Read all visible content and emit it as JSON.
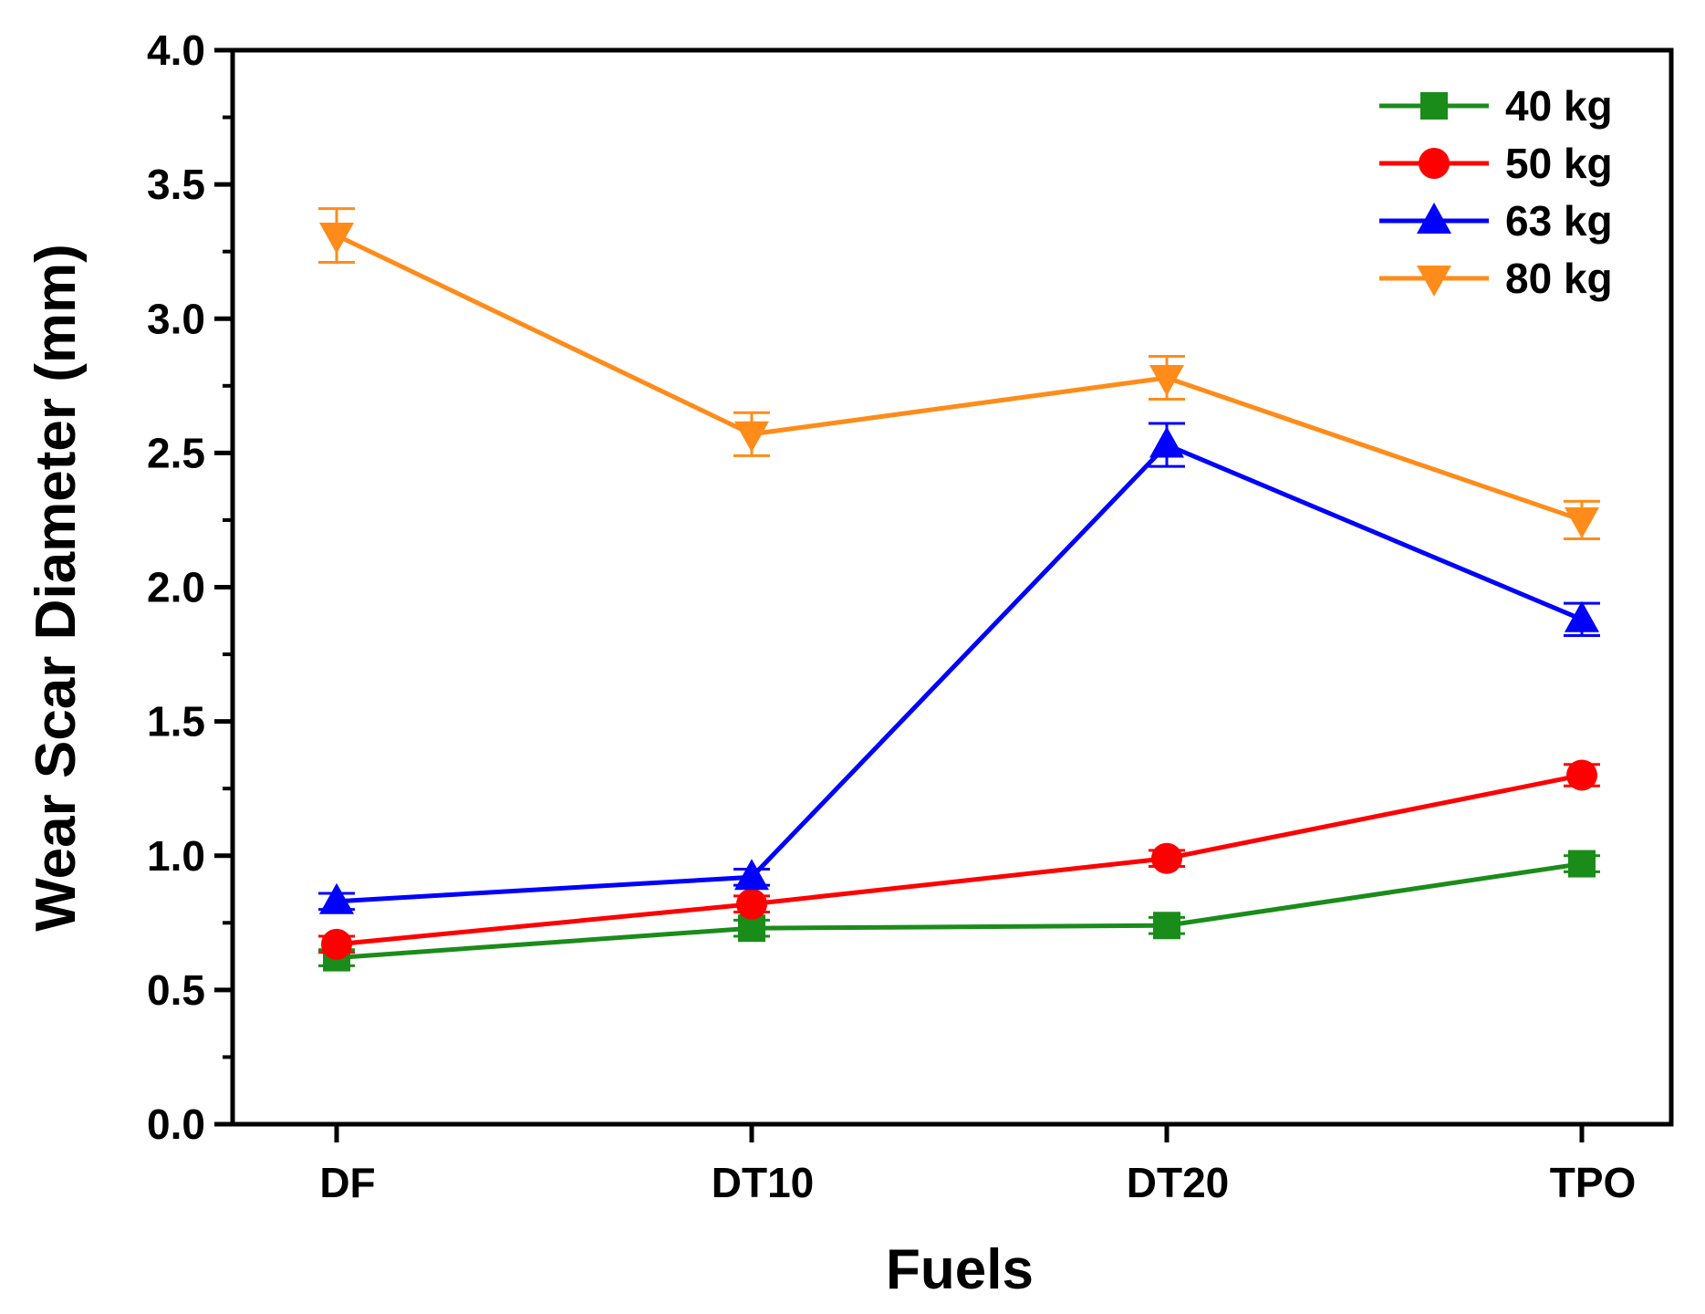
{
  "chart_data": {
    "type": "line",
    "title": "",
    "xlabel": "Fuels",
    "ylabel": "Wear Scar Diameter (mm)",
    "categories": [
      "DF",
      "DT10",
      "DT20",
      "TPO"
    ],
    "ylim": [
      0,
      4
    ],
    "yticks": [
      "0.0",
      "0.5",
      "1.0",
      "1.5",
      "2.0",
      "2.5",
      "3.0",
      "3.5",
      "4.0"
    ],
    "legend_position": "top-right",
    "grid": false,
    "series": [
      {
        "name": "40 kg",
        "color": "#1a8c1a",
        "marker": "square",
        "values": [
          0.62,
          0.73,
          0.74,
          0.97
        ],
        "errors": [
          0.03,
          0.03,
          0.03,
          0.03
        ]
      },
      {
        "name": "50 kg",
        "color": "#ff0000",
        "marker": "circle",
        "values": [
          0.67,
          0.82,
          0.99,
          1.3
        ],
        "errors": [
          0.03,
          0.03,
          0.03,
          0.04
        ]
      },
      {
        "name": "63 kg",
        "color": "#0000ff",
        "marker": "triangle-up",
        "values": [
          0.83,
          0.92,
          2.53,
          1.88
        ],
        "errors": [
          0.03,
          0.03,
          0.08,
          0.06
        ]
      },
      {
        "name": "80 kg",
        "color": "#ff8c1a",
        "marker": "triangle-down",
        "values": [
          3.31,
          2.57,
          2.78,
          2.25
        ],
        "errors": [
          0.1,
          0.08,
          0.08,
          0.07
        ]
      }
    ]
  }
}
